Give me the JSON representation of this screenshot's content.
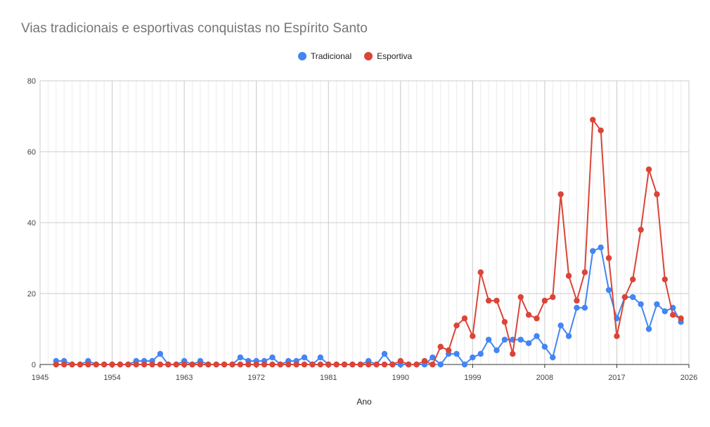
{
  "chart_data": {
    "type": "line",
    "title": "Vias tradicionais e esportivas conquistas no Espírito Santo",
    "xlabel": "Ano",
    "ylabel": "",
    "xlim": [
      1945,
      2026
    ],
    "ylim": [
      0,
      80
    ],
    "x_ticks": [
      "1945",
      "1954",
      "1963",
      "1972",
      "1981",
      "1990",
      "1999",
      "2008",
      "2017",
      "2026"
    ],
    "y_ticks": [
      "0",
      "20",
      "40",
      "60",
      "80"
    ],
    "grid": true,
    "legend_position": "top-center",
    "x": [
      1947,
      1948,
      1949,
      1950,
      1951,
      1952,
      1953,
      1954,
      1955,
      1956,
      1957,
      1958,
      1959,
      1960,
      1961,
      1962,
      1963,
      1964,
      1965,
      1966,
      1967,
      1968,
      1969,
      1970,
      1971,
      1972,
      1973,
      1974,
      1975,
      1976,
      1977,
      1978,
      1979,
      1980,
      1981,
      1982,
      1983,
      1984,
      1985,
      1986,
      1987,
      1988,
      1989,
      1990,
      1991,
      1992,
      1993,
      1994,
      1995,
      1996,
      1997,
      1998,
      1999,
      2000,
      2001,
      2002,
      2003,
      2004,
      2005,
      2006,
      2007,
      2008,
      2009,
      2010,
      2011,
      2012,
      2013,
      2014,
      2015,
      2016,
      2017,
      2018,
      2019,
      2020,
      2021,
      2022,
      2023,
      2024,
      2025
    ],
    "series": [
      {
        "name": "Tradicional",
        "color": "#4285f4",
        "values": [
          1,
          1,
          0,
          0,
          1,
          0,
          0,
          0,
          0,
          0,
          1,
          1,
          1,
          3,
          0,
          0,
          1,
          0,
          1,
          0,
          0,
          0,
          0,
          2,
          1,
          1,
          1,
          2,
          0,
          1,
          1,
          2,
          0,
          2,
          0,
          0,
          0,
          0,
          0,
          1,
          0,
          3,
          0,
          0,
          0,
          0,
          0,
          2,
          0,
          3,
          3,
          0,
          2,
          3,
          7,
          4,
          7,
          7,
          7,
          6,
          8,
          5,
          2,
          11,
          8,
          16,
          16,
          32,
          33,
          21,
          13,
          19,
          19,
          17,
          10,
          17,
          15,
          16,
          12
        ]
      },
      {
        "name": "Esportiva",
        "color": "#db4437",
        "values": [
          0,
          0,
          0,
          0,
          0,
          0,
          0,
          0,
          0,
          0,
          0,
          0,
          0,
          0,
          0,
          0,
          0,
          0,
          0,
          0,
          0,
          0,
          0,
          0,
          0,
          0,
          0,
          0,
          0,
          0,
          0,
          0,
          0,
          0,
          0,
          0,
          0,
          0,
          0,
          0,
          0,
          0,
          0,
          1,
          0,
          0,
          1,
          0,
          5,
          4,
          11,
          13,
          8,
          26,
          18,
          18,
          12,
          3,
          19,
          14,
          13,
          18,
          19,
          48,
          25,
          18,
          26,
          69,
          66,
          30,
          8,
          19,
          24,
          38,
          55,
          48,
          24,
          14,
          13
        ]
      }
    ]
  }
}
